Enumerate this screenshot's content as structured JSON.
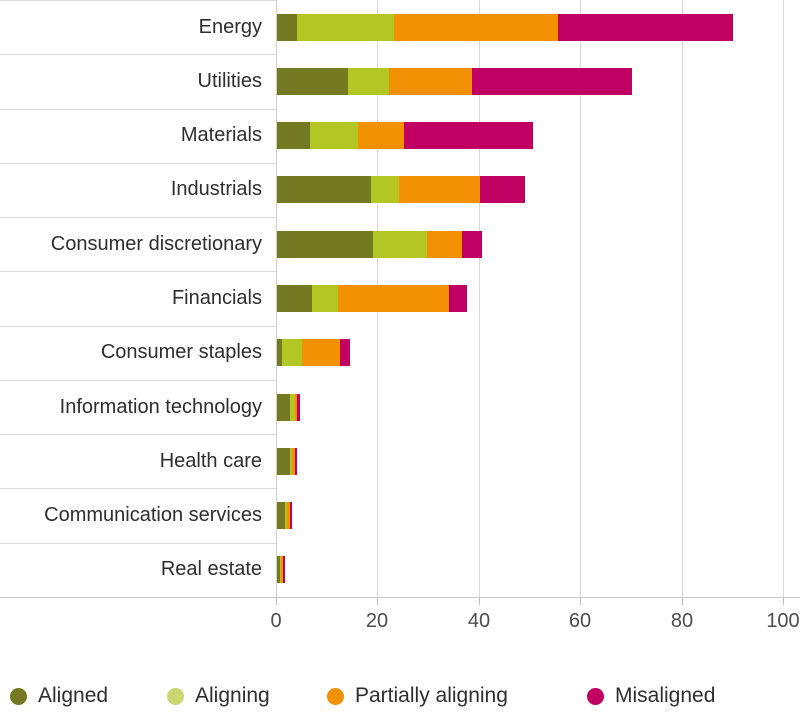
{
  "chart_data": {
    "type": "bar",
    "orientation": "horizontal",
    "stacked": true,
    "title": "",
    "xlabel": "",
    "ylabel": "",
    "xlim": [
      0,
      100
    ],
    "x_ticks": [
      0,
      20,
      40,
      60,
      80,
      100
    ],
    "grid": "vertical",
    "legend_position": "bottom",
    "categories": [
      "Energy",
      "Utilities",
      "Materials",
      "Industrials",
      "Consumer discretionary",
      "Financials",
      "Consumer staples",
      "Information technology",
      "Health care",
      "Communication services",
      "Real estate"
    ],
    "series": [
      {
        "name": "Aligned",
        "color": "#737A21",
        "legend_color": "#737A21",
        "values": [
          4,
          14,
          6.5,
          18.5,
          19,
          7,
          1,
          2.5,
          2.5,
          1.5,
          0.5
        ]
      },
      {
        "name": "Aligning",
        "color": "#B2C723",
        "legend_color": "#CBD670",
        "values": [
          19,
          8,
          9.5,
          5.5,
          10.5,
          5,
          4,
          1,
          0.5,
          0.5,
          0.25
        ]
      },
      {
        "name": "Partially aligning",
        "color": "#F29104",
        "legend_color": "#F29104",
        "values": [
          32.5,
          16.5,
          9,
          16,
          7,
          22,
          7.5,
          0.5,
          0.5,
          0.5,
          0.5
        ]
      },
      {
        "name": "Misaligned",
        "color": "#C00063",
        "legend_color": "#C00063",
        "values": [
          34.5,
          31.5,
          25.5,
          9,
          4,
          3.5,
          2,
          0.5,
          0.5,
          0.5,
          0.25
        ]
      }
    ],
    "colors": {
      "gridline": "#d9d9d9",
      "axis_text": "#4d4d4d",
      "label_text": "#2e2e2e"
    }
  }
}
